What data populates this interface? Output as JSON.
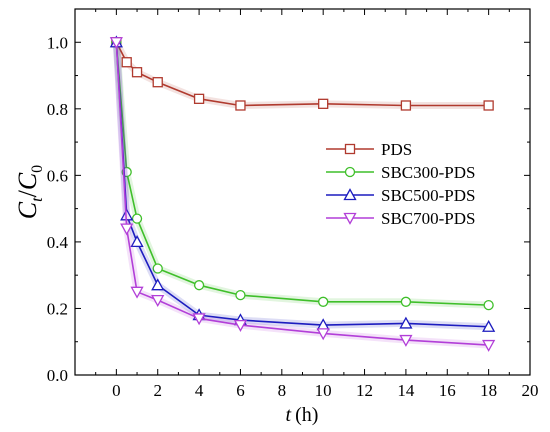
{
  "chart_data": {
    "type": "line",
    "xlabel": {
      "var": "t",
      "unit": "(h)"
    },
    "ylabel": {
      "var": "C",
      "sub1": "t",
      "sep": "/",
      "var2": "C",
      "sub2": "0"
    },
    "xlim": [
      -2,
      20
    ],
    "ylim": [
      0.0,
      1.1
    ],
    "x_ticks": [
      0,
      2,
      4,
      6,
      8,
      10,
      12,
      14,
      16,
      18,
      20
    ],
    "y_ticks": [
      0.0,
      0.2,
      0.4,
      0.6,
      0.8,
      1.0
    ],
    "grid": false,
    "legend_position": "center-right",
    "series": [
      {
        "name": "PDS",
        "color": "#b03a2e",
        "marker": "square",
        "x": [
          0,
          0.5,
          1,
          2,
          4,
          6,
          10,
          14,
          18
        ],
        "y": [
          1.0,
          0.94,
          0.91,
          0.88,
          0.83,
          0.81,
          0.815,
          0.81,
          0.81
        ]
      },
      {
        "name": "SBC300-PDS",
        "color": "#3fbf2a",
        "marker": "circle",
        "x": [
          0,
          0.5,
          1,
          2,
          4,
          6,
          10,
          14,
          18
        ],
        "y": [
          1.0,
          0.61,
          0.47,
          0.32,
          0.27,
          0.24,
          0.22,
          0.22,
          0.21
        ]
      },
      {
        "name": "SBC500-PDS",
        "color": "#1c1cbf",
        "marker": "triangle-up",
        "x": [
          0,
          0.5,
          1,
          2,
          4,
          6,
          10,
          14,
          18
        ],
        "y": [
          1.0,
          0.48,
          0.4,
          0.27,
          0.18,
          0.165,
          0.15,
          0.155,
          0.145
        ]
      },
      {
        "name": "SBC700-PDS",
        "color": "#b23fd8",
        "marker": "triangle-down",
        "x": [
          0,
          0.5,
          1,
          2,
          4,
          6,
          10,
          14,
          18
        ],
        "y": [
          1.0,
          0.44,
          0.25,
          0.225,
          0.17,
          0.15,
          0.125,
          0.105,
          0.09
        ]
      }
    ]
  }
}
